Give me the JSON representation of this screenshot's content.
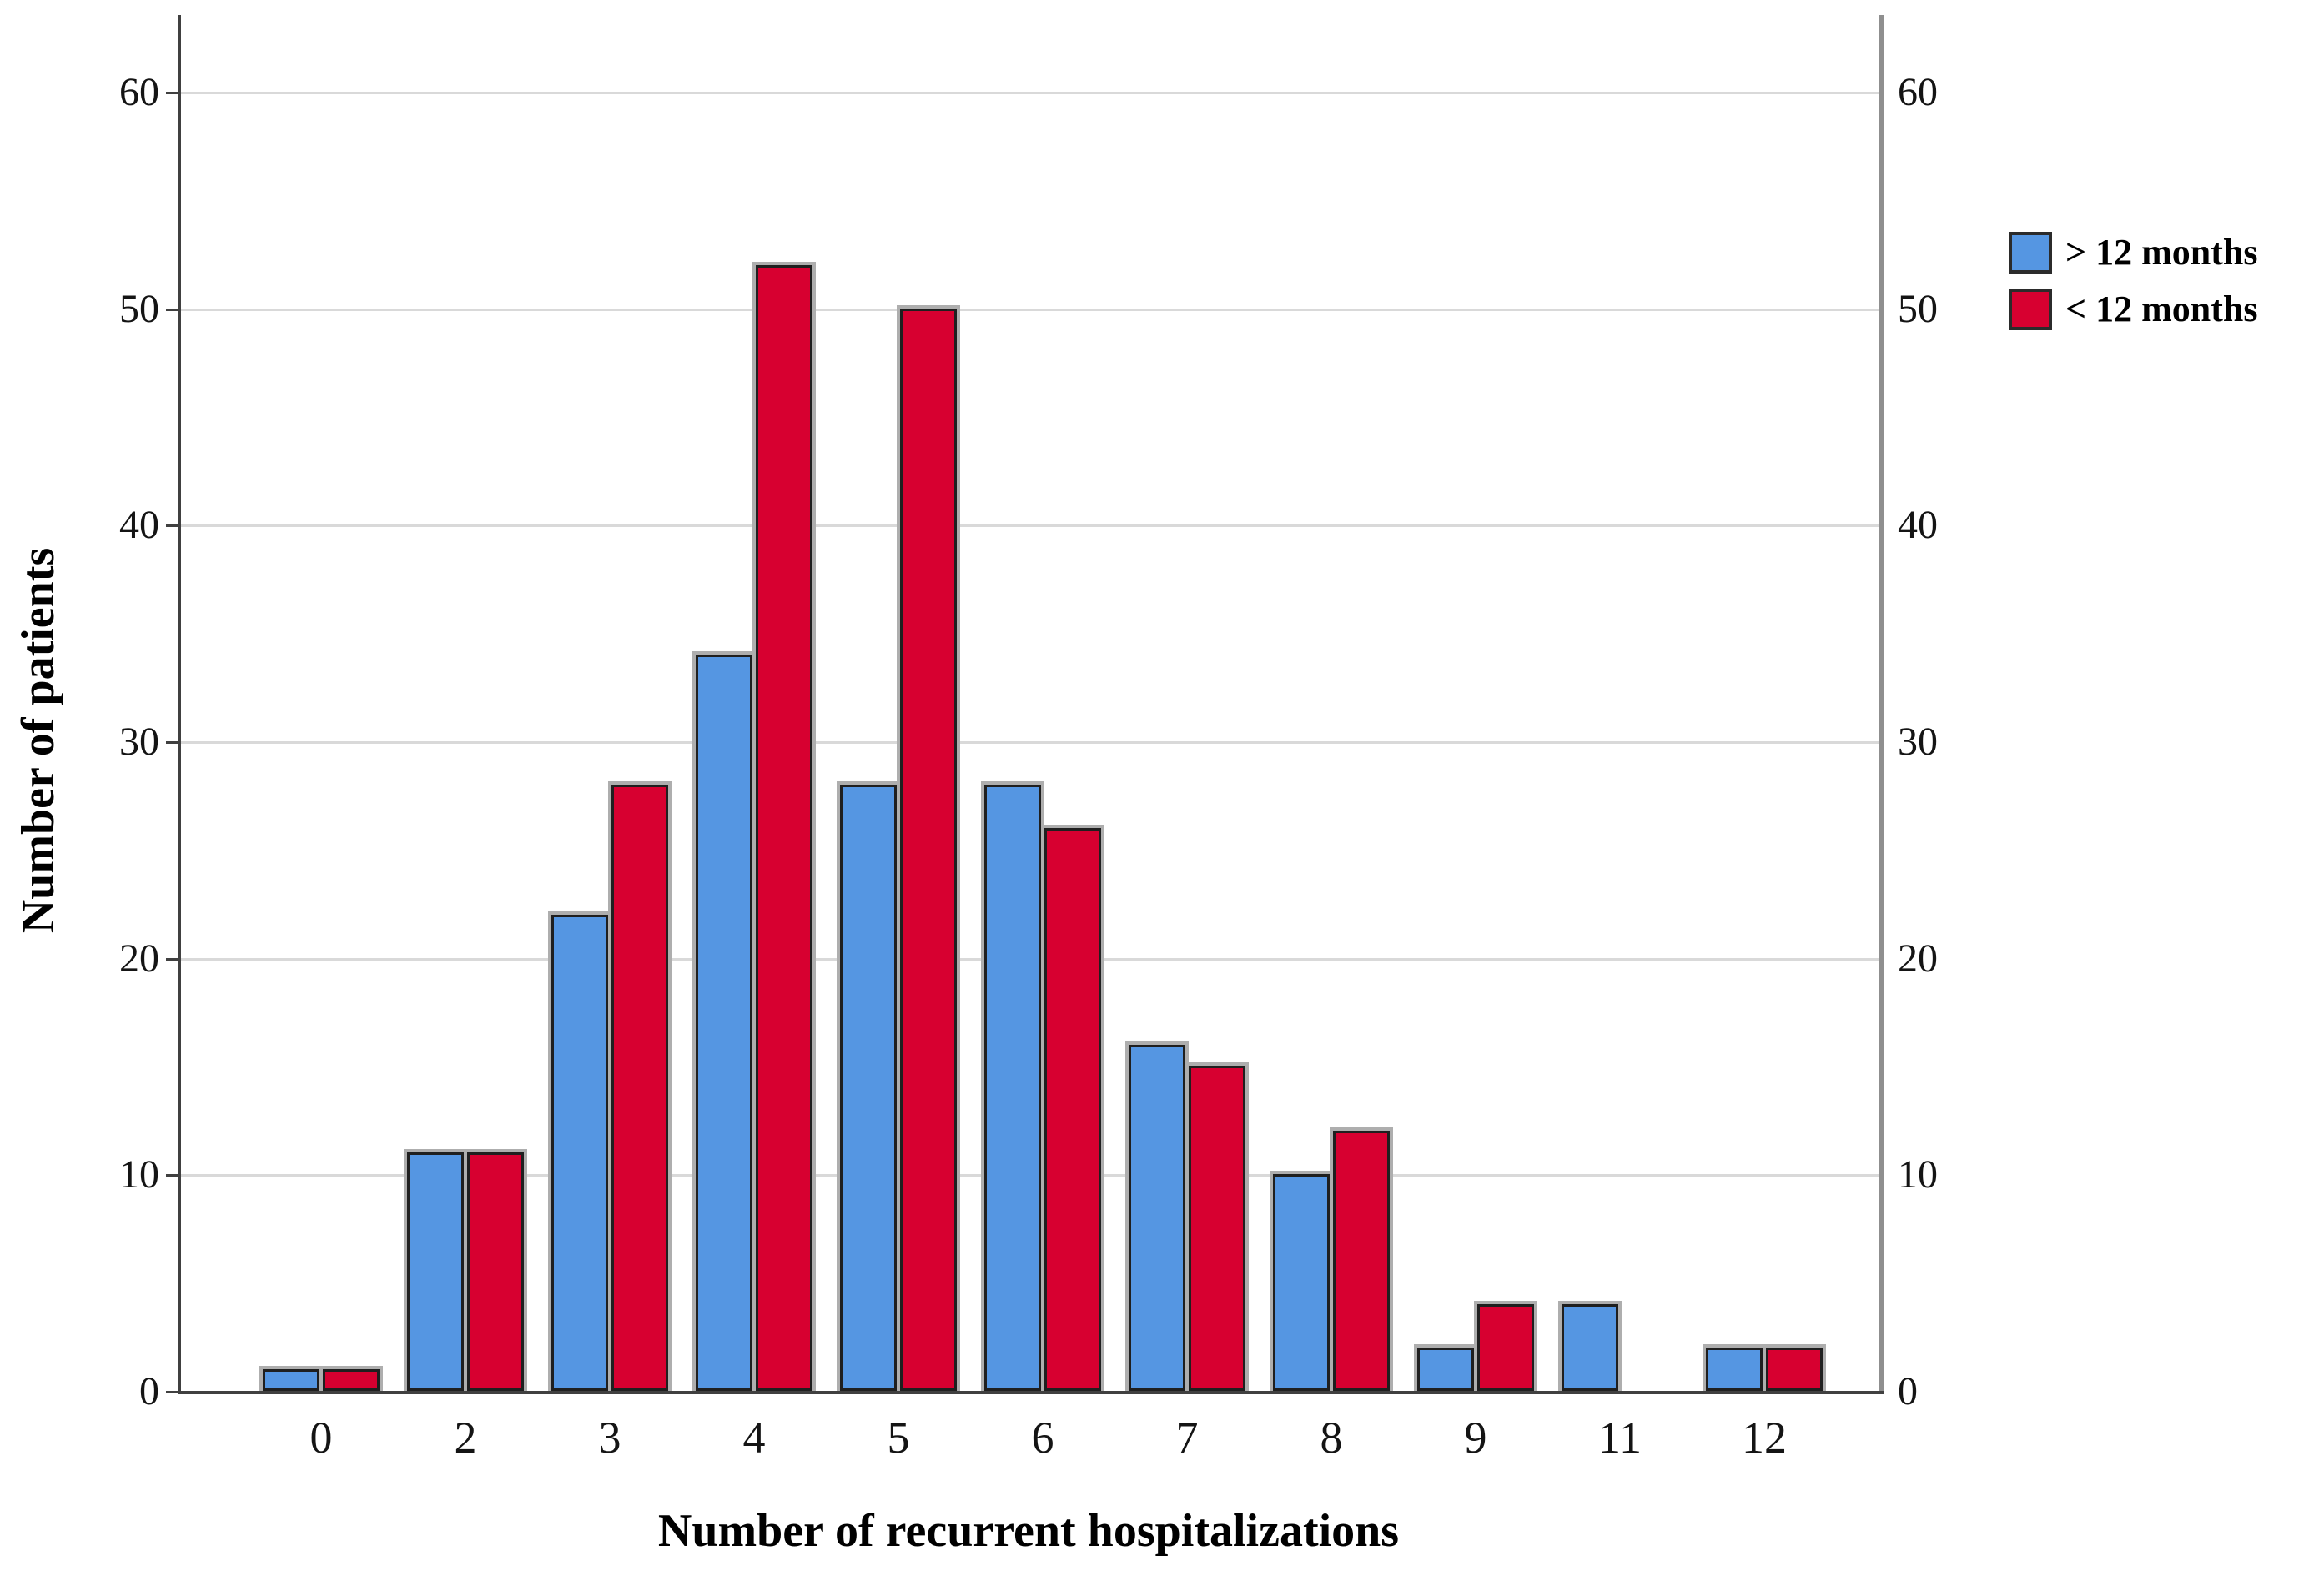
{
  "chart_data": {
    "type": "bar",
    "title": "",
    "xlabel": "Number of recurrent hospitalizations",
    "ylabel": "Number of patients",
    "categories": [
      "0",
      "2",
      "3",
      "4",
      "5",
      "6",
      "7",
      "8",
      "9",
      "11",
      "12"
    ],
    "series": [
      {
        "name": "> 12 months",
        "color": "#5596e2",
        "values": [
          1,
          11,
          22,
          34,
          28,
          28,
          16,
          10,
          2,
          4,
          2
        ]
      },
      {
        "name": "< 12 months",
        "color": "#d70030",
        "values": [
          1,
          11,
          28,
          52,
          50,
          26,
          15,
          12,
          4,
          0,
          2
        ]
      }
    ],
    "y_ticks": [
      0,
      10,
      20,
      30,
      40,
      50,
      60
    ],
    "y_ticks_right": [
      0,
      10,
      20,
      30,
      40,
      50,
      60
    ],
    "ylim": [
      0,
      63
    ],
    "grid": true,
    "legend_position": "top-right",
    "colors": {
      "background": "#ffffff",
      "gridline": "#d9d9d9",
      "axis_left_bottom": "#404040",
      "axis_right": "#8f8f8f",
      "bar_outline": "#1f1f1f",
      "bar_edge_shadow": "#aeaeae",
      "text": "#141414"
    }
  }
}
